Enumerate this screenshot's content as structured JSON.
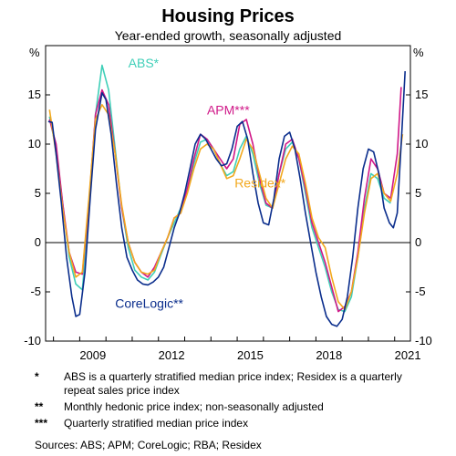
{
  "chart_data": {
    "type": "line",
    "title": "Housing Prices",
    "subtitle": "Year-ended growth, seasonally adjusted",
    "ylabel_left": "%",
    "ylabel_right": "%",
    "ylim": [
      -10,
      20
    ],
    "yticks": [
      -10,
      -5,
      0,
      5,
      10,
      15
    ],
    "xlim": [
      2007.7,
      2021.6
    ],
    "xticks": [
      2009,
      2012,
      2015,
      2018,
      2021
    ],
    "grid": false,
    "series": [
      {
        "name": "ABS*",
        "color": "#3fcfb8",
        "x": [
          2007.85,
          2008.1,
          2008.35,
          2008.6,
          2008.85,
          2009.1,
          2009.35,
          2009.6,
          2009.85,
          2010.1,
          2010.35,
          2010.6,
          2010.85,
          2011.1,
          2011.35,
          2011.6,
          2011.85,
          2012.1,
          2012.35,
          2012.6,
          2012.85,
          2013.1,
          2013.35,
          2013.6,
          2013.85,
          2014.1,
          2014.35,
          2014.6,
          2014.85,
          2015.1,
          2015.35,
          2015.6,
          2015.85,
          2016.1,
          2016.35,
          2016.6,
          2016.85,
          2017.1,
          2017.35,
          2017.6,
          2017.85,
          2018.1,
          2018.35,
          2018.6,
          2018.85,
          2019.1,
          2019.35,
          2019.6,
          2019.85,
          2020.1,
          2020.35,
          2020.6,
          2020.85
        ],
        "values": [
          12.8,
          9.5,
          4.0,
          -1.5,
          -4.2,
          -4.8,
          3.0,
          13.0,
          18.0,
          15.5,
          9.5,
          3.5,
          -0.5,
          -2.8,
          -3.5,
          -3.8,
          -3.0,
          -1.2,
          0.5,
          2.0,
          3.5,
          5.5,
          8.0,
          10.2,
          10.5,
          9.5,
          8.0,
          6.8,
          7.2,
          9.5,
          10.8,
          9.0,
          6.0,
          3.8,
          3.5,
          7.0,
          9.5,
          10.2,
          8.5,
          5.0,
          1.5,
          -0.5,
          -2.5,
          -5.0,
          -6.8,
          -7.0,
          -5.5,
          -1.5,
          3.5,
          7.0,
          6.5,
          4.5,
          4.0
        ]
      },
      {
        "name": "APM***",
        "color": "#d01888",
        "x": [
          2007.85,
          2008.1,
          2008.35,
          2008.6,
          2008.85,
          2009.1,
          2009.35,
          2009.6,
          2009.85,
          2010.1,
          2010.35,
          2010.6,
          2010.85,
          2011.1,
          2011.35,
          2011.6,
          2011.85,
          2012.1,
          2012.35,
          2012.6,
          2012.85,
          2013.1,
          2013.35,
          2013.6,
          2013.85,
          2014.1,
          2014.35,
          2014.6,
          2014.85,
          2015.1,
          2015.35,
          2015.6,
          2015.85,
          2016.1,
          2016.35,
          2016.6,
          2016.85,
          2017.1,
          2017.35,
          2017.6,
          2017.85,
          2018.1,
          2018.35,
          2018.6,
          2018.85,
          2019.1,
          2019.35,
          2019.6,
          2019.85,
          2020.1,
          2020.35,
          2020.6,
          2020.85,
          2021.1,
          2021.25
        ],
        "values": [
          12.5,
          10.0,
          4.0,
          -1.0,
          -3.0,
          -3.2,
          4.0,
          13.0,
          15.5,
          14.0,
          9.0,
          3.5,
          0.0,
          -2.0,
          -3.0,
          -3.5,
          -2.5,
          -1.0,
          0.5,
          2.5,
          3.0,
          5.5,
          8.5,
          11.0,
          10.5,
          9.5,
          8.5,
          7.5,
          8.5,
          12.0,
          12.5,
          10.0,
          6.5,
          4.0,
          3.5,
          7.0,
          10.0,
          10.5,
          8.5,
          5.5,
          2.0,
          0.0,
          -2.0,
          -4.5,
          -7.0,
          -6.5,
          -5.0,
          -1.0,
          4.5,
          8.5,
          7.5,
          5.0,
          4.5,
          9.0,
          15.8
        ]
      },
      {
        "name": "Residex*",
        "color": "#f2a81d",
        "x": [
          2007.85,
          2008.1,
          2008.35,
          2008.6,
          2008.85,
          2009.1,
          2009.35,
          2009.6,
          2009.85,
          2010.1,
          2010.35,
          2010.6,
          2010.85,
          2011.1,
          2011.35,
          2011.6,
          2011.85,
          2012.1,
          2012.35,
          2012.6,
          2012.85,
          2013.1,
          2013.35,
          2013.6,
          2013.85,
          2014.1,
          2014.35,
          2014.6,
          2014.85,
          2015.1,
          2015.35,
          2015.6,
          2015.85,
          2016.1,
          2016.35,
          2016.6,
          2016.85,
          2017.1,
          2017.35,
          2017.6,
          2017.85,
          2018.1,
          2018.35,
          2018.6,
          2018.85,
          2019.1,
          2019.35,
          2019.6,
          2019.85,
          2020.1,
          2020.35,
          2020.6,
          2020.85,
          2021.1,
          2021.3
        ],
        "values": [
          13.5,
          9.0,
          3.5,
          -1.0,
          -3.5,
          -3.0,
          4.5,
          12.5,
          14.0,
          13.0,
          9.0,
          3.8,
          0.0,
          -2.0,
          -3.0,
          -3.2,
          -2.8,
          -1.0,
          0.5,
          2.5,
          3.0,
          5.0,
          7.5,
          9.5,
          10.0,
          9.5,
          8.0,
          6.5,
          6.8,
          8.5,
          10.5,
          9.5,
          7.0,
          4.5,
          3.5,
          6.0,
          8.5,
          9.8,
          9.0,
          6.0,
          2.5,
          0.5,
          -0.5,
          -3.5,
          -6.0,
          -6.8,
          -5.0,
          -1.5,
          3.0,
          6.5,
          7.0,
          5.0,
          4.2,
          7.0,
          11.0
        ]
      },
      {
        "name": "CoreLogic**",
        "color": "#0a2d8c",
        "x": [
          2007.8,
          2007.95,
          2008.1,
          2008.3,
          2008.5,
          2008.7,
          2008.85,
          2009.0,
          2009.2,
          2009.4,
          2009.6,
          2009.85,
          2010.0,
          2010.2,
          2010.4,
          2010.6,
          2010.8,
          2011.0,
          2011.2,
          2011.4,
          2011.6,
          2011.8,
          2012.0,
          2012.2,
          2012.4,
          2012.6,
          2012.8,
          2013.0,
          2013.2,
          2013.4,
          2013.6,
          2013.8,
          2014.0,
          2014.2,
          2014.4,
          2014.6,
          2014.8,
          2015.0,
          2015.2,
          2015.4,
          2015.6,
          2015.8,
          2016.0,
          2016.2,
          2016.4,
          2016.6,
          2016.8,
          2017.0,
          2017.2,
          2017.4,
          2017.6,
          2017.8,
          2018.0,
          2018.2,
          2018.4,
          2018.6,
          2018.8,
          2019.0,
          2019.2,
          2019.4,
          2019.6,
          2019.8,
          2020.0,
          2020.2,
          2020.4,
          2020.6,
          2020.8,
          2020.95,
          2021.1,
          2021.25,
          2021.4
        ],
        "values": [
          12.3,
          12.2,
          9.0,
          4.0,
          -1.5,
          -5.5,
          -7.5,
          -7.3,
          -3.0,
          4.5,
          11.5,
          15.2,
          14.5,
          11.0,
          6.0,
          1.5,
          -1.5,
          -2.8,
          -3.8,
          -4.2,
          -4.3,
          -4.0,
          -3.5,
          -2.5,
          -0.5,
          1.5,
          3.0,
          5.0,
          7.5,
          10.0,
          11.0,
          10.5,
          9.5,
          8.5,
          7.8,
          8.0,
          9.5,
          11.8,
          12.3,
          10.5,
          7.0,
          4.0,
          2.0,
          1.8,
          4.5,
          8.5,
          10.8,
          11.2,
          9.5,
          6.5,
          3.0,
          0.0,
          -3.0,
          -5.5,
          -7.5,
          -8.3,
          -8.5,
          -7.8,
          -5.5,
          -1.5,
          3.5,
          7.5,
          9.5,
          9.2,
          7.0,
          3.5,
          2.0,
          1.5,
          3.0,
          10.0,
          17.4
        ]
      }
    ],
    "labels": [
      {
        "text": "ABS*",
        "series": 0,
        "x": 2010.85,
        "y": 17.8
      },
      {
        "text": "APM***",
        "series": 1,
        "x": 2013.85,
        "y": 13.0
      },
      {
        "text": "Residex*",
        "series": 2,
        "x": 2014.9,
        "y": 5.6
      },
      {
        "text": "CoreLogic**",
        "series": 3,
        "x": 2010.35,
        "y": -6.6
      }
    ]
  },
  "footnotes": [
    {
      "mark": "*",
      "text": "ABS is a quarterly stratified median price index; Residex is a quarterly repeat sales price index"
    },
    {
      "mark": "**",
      "text": "Monthly hedonic price index; non-seasonally adjusted"
    },
    {
      "mark": "***",
      "text": "Quarterly stratified median price index"
    }
  ],
  "sources": "Sources: ABS; APM; CoreLogic; RBA; Residex"
}
